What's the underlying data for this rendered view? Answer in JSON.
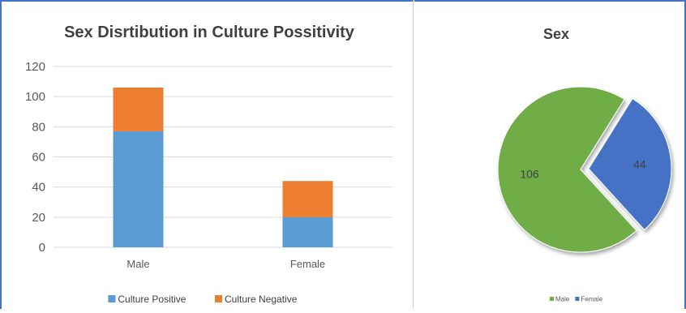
{
  "bar_chart": {
    "title": "Sex Disrtibution in Culture Possitivity",
    "ylim": [
      0,
      120
    ],
    "yticks": [
      0,
      20,
      40,
      60,
      80,
      100,
      120
    ],
    "categories": [
      "Male",
      "Female"
    ],
    "series": [
      {
        "name": "Culture Positive",
        "color": "#5b9bd5",
        "values": [
          77,
          20
        ]
      },
      {
        "name": "Culture Negative",
        "color": "#ed7d31",
        "values": [
          29,
          24
        ]
      }
    ]
  },
  "pie_chart": {
    "title": "Sex",
    "slices": [
      {
        "name": "Male",
        "value": 106,
        "label": "106",
        "color": "#70ad47"
      },
      {
        "name": "Female",
        "value": 44,
        "label": "44",
        "color": "#4472c4"
      }
    ]
  },
  "chart_data": [
    {
      "type": "bar",
      "stacked": true,
      "title": "Sex Disrtibution in Culture Possitivity",
      "categories": [
        "Male",
        "Female"
      ],
      "series": [
        {
          "name": "Culture Positive",
          "values": [
            77,
            20
          ]
        },
        {
          "name": "Culture Negative",
          "values": [
            29,
            24
          ]
        }
      ],
      "ylim": [
        0,
        120
      ],
      "grid": true,
      "legend": "bottom"
    },
    {
      "type": "pie",
      "title": "Sex",
      "categories": [
        "Male",
        "Female"
      ],
      "values": [
        106,
        44
      ],
      "legend": "bottom"
    }
  ]
}
